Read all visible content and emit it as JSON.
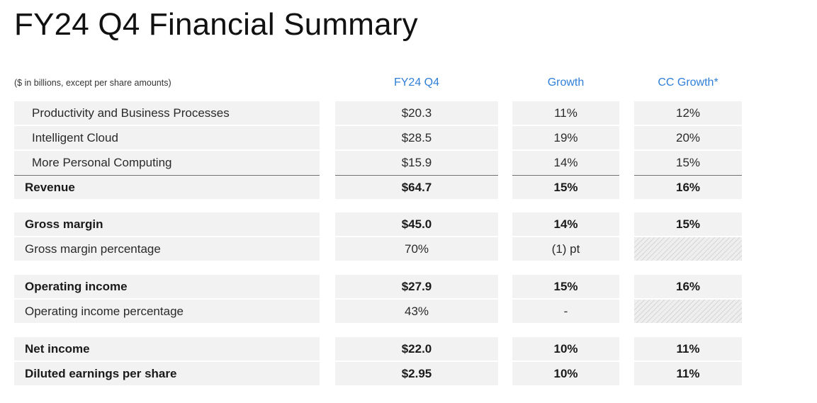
{
  "title": "FY24 Q4 Financial Summary",
  "note": "($ in billions, except per share amounts)",
  "headers": {
    "q4": "FY24 Q4",
    "growth": "Growth",
    "cc_growth": "CC Growth*"
  },
  "accent_color": "#2f7fd8",
  "rows": [
    {
      "label": "Productivity and Business Processes",
      "q4": "$20.3",
      "growth": "11%",
      "cc_growth": "12%"
    },
    {
      "label": "Intelligent Cloud",
      "q4": "$28.5",
      "growth": "19%",
      "cc_growth": "20%"
    },
    {
      "label": "More Personal Computing",
      "q4": "$15.9",
      "growth": "14%",
      "cc_growth": "15%"
    },
    {
      "label": "Revenue",
      "q4": "$64.7",
      "growth": "15%",
      "cc_growth": "16%"
    },
    {
      "label": "Gross margin",
      "q4": "$45.0",
      "growth": "14%",
      "cc_growth": "15%"
    },
    {
      "label": "Gross margin percentage",
      "q4": "70%",
      "growth": "(1) pt",
      "cc_growth": ""
    },
    {
      "label": "Operating income",
      "q4": "$27.9",
      "growth": "15%",
      "cc_growth": "16%"
    },
    {
      "label": "Operating income percentage",
      "q4": "43%",
      "growth": "-",
      "cc_growth": ""
    },
    {
      "label": "Net income",
      "q4": "$22.0",
      "growth": "10%",
      "cc_growth": "11%"
    },
    {
      "label": "Diluted earnings per share",
      "q4": "$2.95",
      "growth": "10%",
      "cc_growth": "11%"
    }
  ]
}
